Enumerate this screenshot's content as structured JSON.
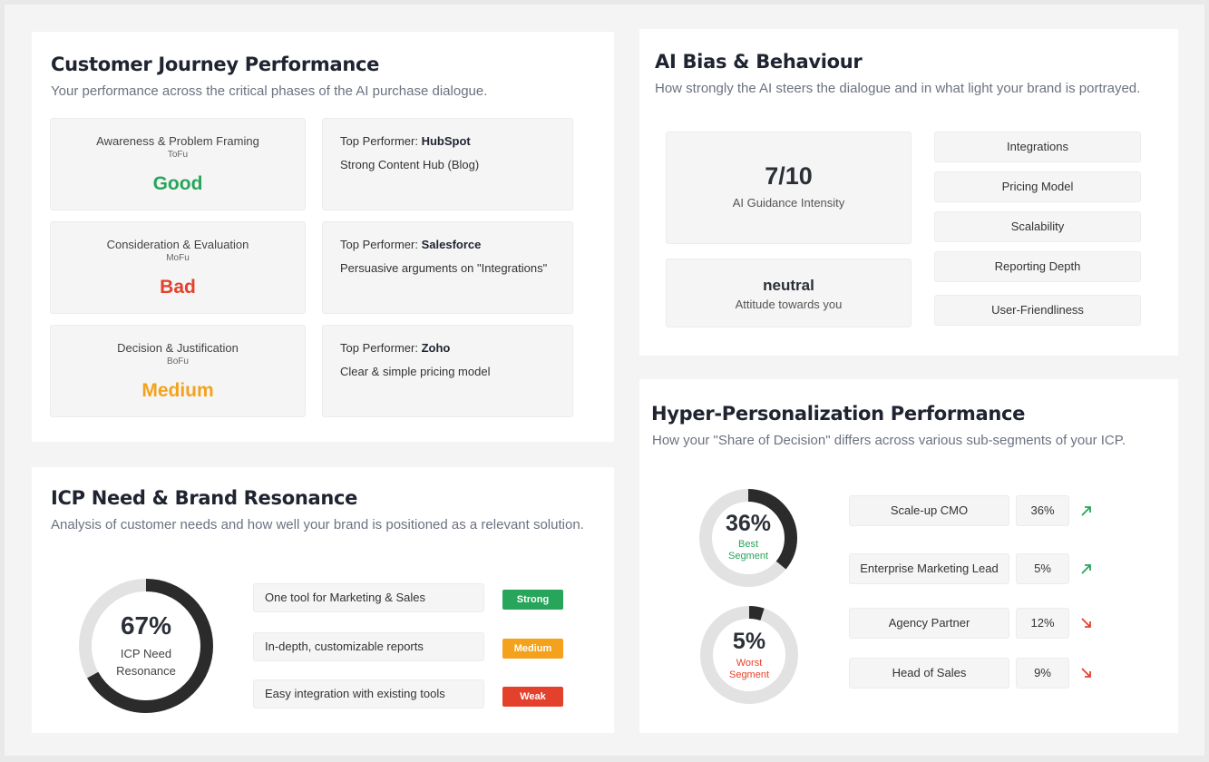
{
  "colors": {
    "good": "#27a55a",
    "bad": "#e4412d",
    "medium": "#f4a21c",
    "ring_dark": "#2b2b2b",
    "ring_light": "#e2e2e2"
  },
  "journey": {
    "title": "Customer Journey Performance",
    "subtitle": "Your performance across the critical phases of the AI purchase dialogue.",
    "phases": [
      {
        "name": "Awareness & Problem Framing",
        "code": "ToFu",
        "rating": "Good",
        "rating_color": "#27a55a",
        "performer_prefix": "Top Performer: ",
        "performer": "HubSpot",
        "reason": "Strong Content Hub (Blog)"
      },
      {
        "name": "Consideration & Evaluation",
        "code": "MoFu",
        "rating": "Bad",
        "rating_color": "#e4412d",
        "performer_prefix": "Top Performer: ",
        "performer": "Salesforce",
        "reason": "Persuasive arguments on \"Integrations\""
      },
      {
        "name": "Decision & Justification",
        "code": "BoFu",
        "rating": "Medium",
        "rating_color": "#f4a21c",
        "performer_prefix": "Top Performer: ",
        "performer": "Zoho",
        "reason": "Clear & simple pricing model"
      }
    ]
  },
  "bias": {
    "title": "AI Bias & Behaviour",
    "subtitle": "How strongly the AI steers the dialogue and in what light your brand is portrayed.",
    "guidance_value": "7/10",
    "guidance_label": "AI Guidance Intensity",
    "attitude_value": "neutral",
    "attitude_label": "Attitude towards you",
    "topics": [
      "Integrations",
      "Pricing Model",
      "Scalability",
      "Reporting Depth",
      "User-Friendliness"
    ]
  },
  "icp": {
    "title": "ICP Need & Brand Resonance",
    "subtitle": "Analysis of customer needs and how well your brand is positioned as a relevant solution.",
    "resonance_value": "67%",
    "resonance_percent": 67,
    "resonance_label_1": "ICP Need",
    "resonance_label_2": "Resonance",
    "needs": [
      {
        "label": "One tool for Marketing & Sales",
        "badge": "Strong",
        "badge_color": "#27a55a"
      },
      {
        "label": "In-depth, customizable reports",
        "badge": "Medium",
        "badge_color": "#f4a21c"
      },
      {
        "label": "Easy integration with existing tools",
        "badge": "Weak",
        "badge_color": "#e4412d"
      }
    ]
  },
  "hyper": {
    "title": "Hyper-Personalization Performance",
    "subtitle": "How your \"Share of Decision\" differs across various sub-segments of your ICP.",
    "best_value": "36%",
    "best_percent": 36,
    "best_label_1": "Best",
    "best_label_2": "Segment",
    "worst_value": "5%",
    "worst_percent": 5,
    "worst_label_1": "Worst",
    "worst_label_2": "Segment",
    "segments": [
      {
        "name": "Scale-up CMO",
        "value": "36%",
        "trend": "up"
      },
      {
        "name": "Enterprise Marketing Lead",
        "value": "5%",
        "trend": "up"
      },
      {
        "name": "Agency Partner",
        "value": "12%",
        "trend": "down"
      },
      {
        "name": "Head of Sales",
        "value": "9%",
        "trend": "down"
      }
    ]
  }
}
